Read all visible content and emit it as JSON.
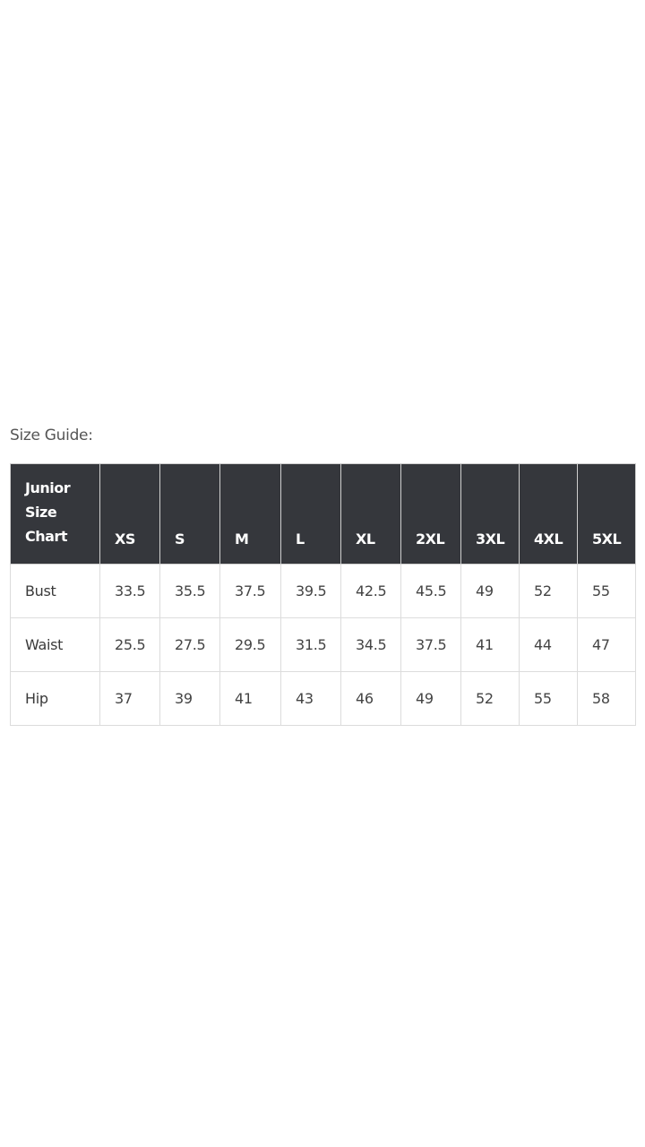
{
  "title": "Size Guide:",
  "table": {
    "header_corner": "Junior Size Chart",
    "colors": {
      "header_bg": "#35373c",
      "header_text": "#ffffff",
      "border": "#dcdcdc"
    },
    "columns": [
      "XS",
      "S",
      "M",
      "L",
      "XL",
      "2XL",
      "3XL",
      "4XL",
      "5XL"
    ],
    "rows": [
      {
        "label": "Bust",
        "values": [
          "33.5",
          "35.5",
          "37.5",
          "39.5",
          "42.5",
          "45.5",
          "49",
          "52",
          "55"
        ]
      },
      {
        "label": "Waist",
        "values": [
          "25.5",
          "27.5",
          "29.5",
          "31.5",
          "34.5",
          "37.5",
          "41",
          "44",
          "47"
        ]
      },
      {
        "label": "Hip",
        "values": [
          "37",
          "39",
          "41",
          "43",
          "46",
          "49",
          "52",
          "55",
          "58"
        ]
      }
    ]
  }
}
